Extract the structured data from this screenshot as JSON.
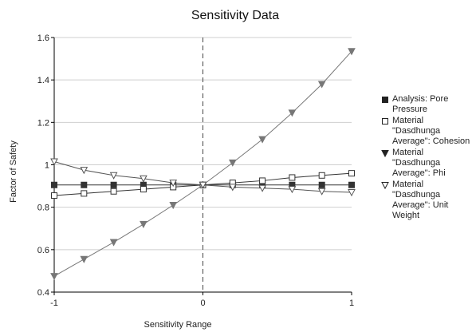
{
  "chart_data": {
    "type": "line",
    "title": "Sensitivity Data",
    "xlabel": "Sensitivity Range",
    "ylabel": "Factor of Safety",
    "xlim": [
      -1,
      1
    ],
    "ylim": [
      0.4,
      1.6
    ],
    "xticks": [
      "-1",
      "0",
      "1"
    ],
    "yticks": [
      "0.4",
      "0.6",
      "0.8",
      "1",
      "1.2",
      "1.4",
      "1.6"
    ],
    "grid": "horizontal",
    "reference_line_x": 0,
    "legend_position": "right",
    "x": [
      -1,
      -0.8,
      -0.6,
      -0.4,
      -0.2,
      0,
      0.2,
      0.4,
      0.6,
      0.8,
      1
    ],
    "series": [
      {
        "name": "Analysis: Pore Pressure",
        "marker": "square-filled",
        "color": "#333333",
        "values": [
          0.905,
          0.905,
          0.905,
          0.905,
          0.905,
          0.905,
          0.905,
          0.905,
          0.905,
          0.905,
          0.905
        ]
      },
      {
        "name": "Material \"Dasdhunga Average\": Cohesion",
        "marker": "square-open",
        "color": "#333333",
        "values": [
          0.855,
          0.865,
          0.875,
          0.885,
          0.895,
          0.905,
          0.915,
          0.925,
          0.94,
          0.95,
          0.96
        ]
      },
      {
        "name": "Material \"Dasdhunga Average\": Phi",
        "marker": "triangle-down-filled",
        "color": "#777777",
        "values": [
          0.475,
          0.555,
          0.635,
          0.72,
          0.81,
          0.905,
          1.01,
          1.12,
          1.245,
          1.38,
          1.535
        ]
      },
      {
        "name": "Material \"Dasdhunga Average\": Unit Weight",
        "marker": "triangle-down-open",
        "color": "#555555",
        "values": [
          1.015,
          0.975,
          0.95,
          0.935,
          0.915,
          0.905,
          0.895,
          0.89,
          0.885,
          0.875,
          0.87
        ]
      }
    ]
  }
}
